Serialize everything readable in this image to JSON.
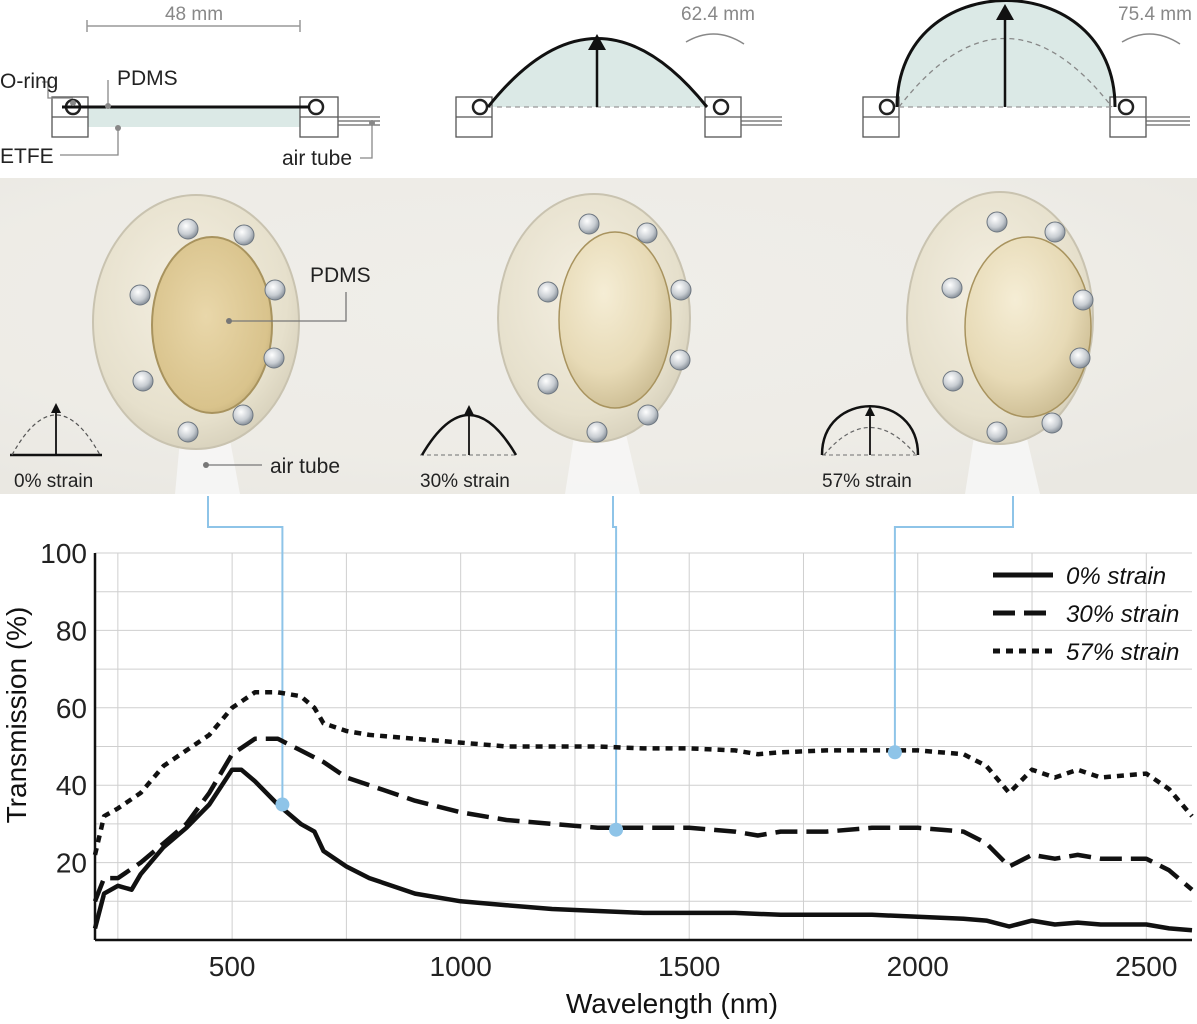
{
  "diagram": {
    "dimensions": [
      "48 mm",
      "62.4 mm",
      "75.4 mm"
    ],
    "labels": {
      "o_ring": "O-ring",
      "pdms_top": "PDMS",
      "etfe": "ETFE",
      "air_tube_top": "air tube",
      "pdms_photo": "PDMS",
      "air_tube_photo": "air tube"
    },
    "strain_labels": [
      "0% strain",
      "30% strain",
      "57% strain"
    ]
  },
  "chart_data": {
    "type": "line",
    "xlabel": "Wavelength (nm)",
    "ylabel": "Transmission (%)",
    "xlim": [
      200,
      2600
    ],
    "ylim": [
      0,
      100
    ],
    "xticks": [
      500,
      1000,
      1500,
      2000,
      2500
    ],
    "yticks": [
      20,
      40,
      60,
      80,
      100
    ],
    "grid": true,
    "legend_position": "top-right",
    "series": [
      {
        "name": "0% strain",
        "style": "solid",
        "x": [
          200,
          220,
          250,
          280,
          300,
          350,
          400,
          450,
          500,
          520,
          550,
          600,
          650,
          680,
          700,
          750,
          800,
          900,
          1000,
          1100,
          1200,
          1300,
          1400,
          1500,
          1600,
          1700,
          1800,
          1900,
          2000,
          2100,
          2150,
          2200,
          2250,
          2300,
          2350,
          2400,
          2500,
          2550,
          2600
        ],
        "y": [
          3,
          12,
          14,
          13,
          17,
          24,
          29,
          35,
          44,
          44,
          41,
          35,
          30,
          28,
          23,
          19,
          16,
          12,
          10,
          9,
          8,
          7.5,
          7,
          7,
          7,
          6.5,
          6.5,
          6.5,
          6,
          5.5,
          5,
          3.5,
          5,
          4,
          4.5,
          4,
          4,
          3,
          2.5
        ]
      },
      {
        "name": "30% strain",
        "style": "dashed",
        "x": [
          200,
          220,
          250,
          300,
          350,
          400,
          450,
          500,
          550,
          600,
          650,
          700,
          750,
          800,
          900,
          1000,
          1100,
          1200,
          1300,
          1400,
          1500,
          1600,
          1650,
          1700,
          1800,
          1900,
          2000,
          2100,
          2150,
          2200,
          2250,
          2300,
          2350,
          2400,
          2500,
          2550,
          2600
        ],
        "y": [
          10,
          16,
          16,
          20,
          25,
          30,
          38,
          48,
          52,
          52,
          49,
          46,
          42,
          40,
          36,
          33,
          31,
          30,
          29,
          29,
          29,
          28,
          27,
          28,
          28,
          29,
          29,
          28,
          25,
          19,
          22,
          21,
          22,
          21,
          21,
          18,
          13
        ]
      },
      {
        "name": "57% strain",
        "style": "dotted",
        "x": [
          200,
          220,
          250,
          300,
          350,
          400,
          450,
          500,
          550,
          600,
          650,
          680,
          700,
          750,
          800,
          900,
          1000,
          1100,
          1200,
          1300,
          1400,
          1500,
          1600,
          1650,
          1700,
          1800,
          1900,
          2000,
          2100,
          2150,
          2200,
          2250,
          2300,
          2350,
          2400,
          2500,
          2550,
          2600
        ],
        "y": [
          22,
          32,
          34,
          38,
          45,
          49,
          53,
          60,
          64,
          64,
          63,
          60,
          56,
          54,
          53,
          52,
          51,
          50,
          50,
          50,
          49.5,
          49.5,
          49,
          48,
          48.5,
          49,
          49,
          49,
          48,
          45,
          38,
          44,
          42,
          44,
          42,
          43,
          39,
          32
        ]
      }
    ],
    "markers": [
      {
        "series": "0% strain",
        "x": 610,
        "y": 35
      },
      {
        "series": "30% strain",
        "x": 1340,
        "y": 28.5
      },
      {
        "series": "57% strain",
        "x": 1950,
        "y": 48.5
      }
    ],
    "colors": {
      "lines": "#111111",
      "markers": "#8ec4e8",
      "connectors": "#8ec4e8"
    }
  }
}
